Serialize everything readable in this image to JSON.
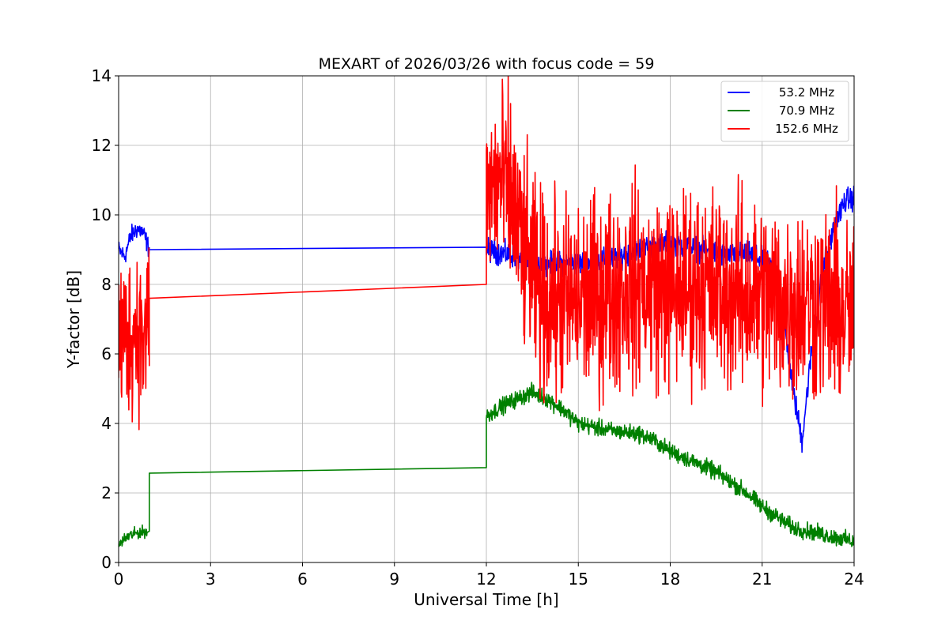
{
  "chart_data": {
    "type": "line",
    "title": "MEXART of 2026/03/26 with focus code = 59",
    "xlabel": "Universal Time [h]",
    "ylabel": "Y-factor [dB]",
    "xlim": [
      0,
      24
    ],
    "ylim": [
      0,
      14
    ],
    "xticks": [
      0,
      3,
      6,
      9,
      12,
      15,
      18,
      21,
      24
    ],
    "yticks": [
      0,
      2,
      4,
      6,
      8,
      10,
      12,
      14
    ],
    "grid": true,
    "legend_position": "top-right",
    "series": [
      {
        "name": " 53.2 MHz",
        "color": "#0000ff",
        "segments": [
          {
            "x": [
              0,
              0.2,
              0.4,
              0.6,
              0.8,
              1.0
            ],
            "y": [
              9.0,
              8.8,
              9.4,
              9.6,
              9.5,
              9.0
            ],
            "noise": 0.4
          },
          {
            "x": [
              1.0,
              12.0
            ],
            "y": [
              9.0,
              9.07
            ],
            "noise": 0
          },
          {
            "x": [
              12.0,
              12.5,
              13.0,
              13.5,
              14.0,
              15.0,
              16.0,
              17.0,
              18.0,
              19.0,
              20.0,
              20.5,
              21.0,
              21.5,
              22.0,
              22.3,
              22.6,
              23.0,
              23.4,
              23.7,
              24.0
            ],
            "y": [
              9.0,
              8.9,
              8.8,
              8.6,
              8.6,
              8.6,
              8.7,
              9.0,
              9.2,
              9.0,
              8.8,
              8.9,
              8.7,
              8.4,
              5.0,
              3.5,
              6.0,
              8.5,
              9.8,
              10.4,
              10.5
            ],
            "noise": 0.5
          }
        ]
      },
      {
        "name": " 70.9 MHz",
        "color": "#008000",
        "segments": [
          {
            "x": [
              0,
              0.3,
              0.6,
              0.95
            ],
            "y": [
              0.5,
              0.75,
              0.85,
              0.9
            ],
            "noise": 0.25
          },
          {
            "x": [
              1.0,
              1.0,
              12.0,
              12.0
            ],
            "y": [
              0.9,
              2.57,
              2.73,
              3.9
            ],
            "noise": 0
          },
          {
            "x": [
              12.0,
              12.5,
              13.0,
              13.5,
              14.0,
              14.5,
              15.0,
              16.0,
              17.0,
              17.5,
              18.0,
              18.5,
              19.0,
              19.5,
              20.0,
              20.5,
              21.0,
              21.5,
              22.0,
              22.5,
              23.0,
              23.5,
              24.0
            ],
            "y": [
              4.2,
              4.5,
              4.7,
              4.9,
              4.7,
              4.4,
              4.0,
              3.8,
              3.7,
              3.5,
              3.2,
              3.0,
              2.8,
              2.6,
              2.3,
              2.0,
              1.6,
              1.3,
              1.0,
              0.9,
              0.8,
              0.7,
              0.6
            ],
            "noise": 0.35
          }
        ]
      },
      {
        "name": "152.6 MHz",
        "color": "#ff0000",
        "segments": [
          {
            "x": [
              0,
              0.3,
              0.6,
              0.9,
              1.0
            ],
            "y": [
              6.5,
              6.5,
              6.8,
              6.3,
              7.6
            ],
            "noise": 3.5
          },
          {
            "x": [
              1.0,
              12.0
            ],
            "y": [
              7.6,
              8.0
            ],
            "noise": 0
          },
          {
            "x": [
              12.0,
              12.4,
              12.8,
              13.2,
              13.6,
              14.0,
              15.0,
              16.0,
              17.0,
              18.0,
              19.0,
              20.0,
              21.0,
              22.0,
              23.0,
              24.0
            ],
            "y": [
              10.5,
              11.0,
              10.5,
              9.0,
              8.0,
              7.5,
              7.5,
              7.8,
              8.0,
              7.8,
              8.0,
              7.8,
              7.6,
              7.5,
              7.5,
              7.0
            ],
            "noise": 4.2
          }
        ]
      }
    ]
  }
}
